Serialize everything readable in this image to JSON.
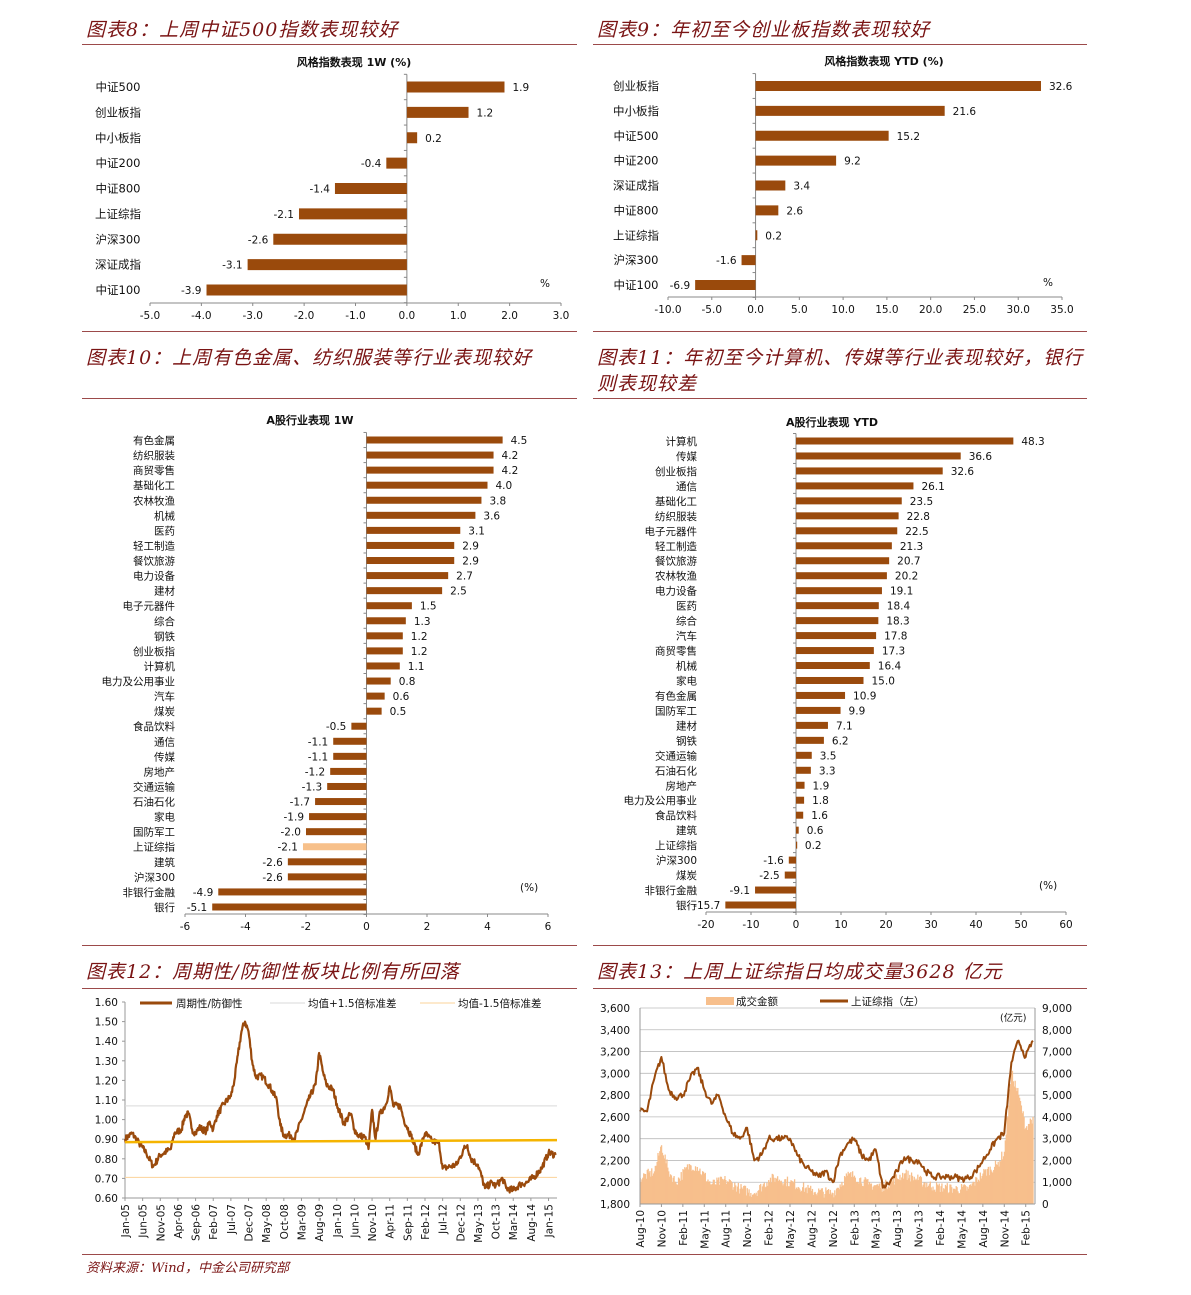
{
  "figures": [
    {
      "caption": "图表8：上周中证500指数表现较好"
    },
    {
      "caption": "图表9：年初至今创业板指数表现较好"
    },
    {
      "caption": "图表10：上周有色金属、纺织服装等行业表现较好"
    },
    {
      "caption_line1": "图表11：年初至今计算机、传媒等行业表现较好，银行",
      "caption_line2": "则表现较差"
    },
    {
      "caption": "图表12：周期性/防御性板块比例有所回落"
    },
    {
      "caption": "图表13：上周上证综指日均成交量3628 亿元"
    }
  ],
  "source": "资料来源：Wind，中金公司研究部",
  "colors": {
    "bar": "#9a4a0c",
    "highlight_bar": "#f7c08a",
    "caption": "#7a1414",
    "mean_line": "#f5b400",
    "plus_sigma": "#d9d9d9",
    "minus_sigma": "#fbd39a",
    "volume": "#f7bf8c"
  },
  "chart_data": [
    {
      "type": "bar",
      "orientation": "horizontal",
      "title": "风格指数表现 1W (%)",
      "unit_label": "%",
      "categories": [
        "中证500",
        "创业板指",
        "中小板指",
        "中证200",
        "中证800",
        "上证综指",
        "沪深300",
        "深证成指",
        "中证100"
      ],
      "values": [
        1.9,
        1.2,
        0.2,
        -0.4,
        -1.4,
        -2.1,
        -2.6,
        -3.1,
        -3.9
      ],
      "xlim": [
        -5,
        3
      ],
      "xticks": [
        "-5.0",
        "-4.0",
        "-3.0",
        "-2.0",
        "-1.0",
        "0.0",
        "1.0",
        "2.0",
        "3.0"
      ]
    },
    {
      "type": "bar",
      "orientation": "horizontal",
      "title": "风格指数表现 YTD (%)",
      "unit_label": "%",
      "categories": [
        "创业板指",
        "中小板指",
        "中证500",
        "中证200",
        "深证成指",
        "中证800",
        "上证综指",
        "沪深300",
        "中证100"
      ],
      "values": [
        32.6,
        21.6,
        15.2,
        9.2,
        3.4,
        2.6,
        0.2,
        -1.6,
        -6.9
      ],
      "xlim": [
        -10,
        35
      ],
      "xticks": [
        "-10.0",
        "-5.0",
        "0.0",
        "5.0",
        "10.0",
        "15.0",
        "20.0",
        "25.0",
        "30.0",
        "35.0"
      ]
    },
    {
      "type": "bar",
      "orientation": "horizontal",
      "title": "A股行业表现  1W",
      "unit_label": "(%)",
      "categories": [
        "有色金属",
        "纺织服装",
        "商贸零售",
        "基础化工",
        "农林牧渔",
        "机械",
        "医药",
        "轻工制造",
        "餐饮旅游",
        "电力设备",
        "建材",
        "电子元器件",
        "综合",
        "钢铁",
        "创业板指",
        "计算机",
        "电力及公用事业",
        "汽车",
        "煤炭",
        "食品饮料",
        "通信",
        "传媒",
        "房地产",
        "交通运输",
        "石油石化",
        "家电",
        "国防军工",
        "上证综指",
        "建筑",
        "沪深300",
        "非银行金融",
        "银行"
      ],
      "values": [
        4.5,
        4.2,
        4.2,
        4.0,
        3.8,
        3.6,
        3.1,
        2.9,
        2.9,
        2.7,
        2.5,
        1.5,
        1.3,
        1.2,
        1.2,
        1.1,
        0.8,
        0.6,
        0.5,
        -0.5,
        -1.1,
        -1.1,
        -1.2,
        -1.3,
        -1.7,
        -1.9,
        -2.0,
        -2.1,
        -2.6,
        -2.6,
        -4.9,
        -5.1
      ],
      "highlight": "上证综指",
      "xlim": [
        -6,
        6
      ],
      "xticks": [
        "-6",
        "-4",
        "-2",
        "0",
        "2",
        "4",
        "6"
      ]
    },
    {
      "type": "bar",
      "orientation": "horizontal",
      "title": "A股行业表现 YTD",
      "unit_label": "(%)",
      "categories": [
        "计算机",
        "传媒",
        "创业板指",
        "通信",
        "基础化工",
        "纺织服装",
        "电子元器件",
        "轻工制造",
        "餐饮旅游",
        "农林牧渔",
        "电力设备",
        "医药",
        "综合",
        "汽车",
        "商贸零售",
        "机械",
        "家电",
        "有色金属",
        "国防军工",
        "建材",
        "钢铁",
        "交通运输",
        "石油石化",
        "房地产",
        "电力及公用事业",
        "食品饮料",
        "建筑",
        "上证综指",
        "沪深300",
        "煤炭",
        "非银行金融",
        "银行"
      ],
      "values": [
        48.3,
        36.6,
        32.6,
        26.1,
        23.5,
        22.8,
        22.5,
        21.3,
        20.7,
        20.2,
        19.1,
        18.4,
        18.3,
        17.8,
        17.3,
        16.4,
        15.0,
        10.9,
        9.9,
        7.1,
        6.2,
        3.5,
        3.3,
        1.9,
        1.8,
        1.6,
        0.6,
        0.2,
        -1.6,
        -2.5,
        -9.1,
        -15.7
      ],
      "xlim": [
        -20,
        60
      ],
      "xticks": [
        "-20",
        "-10",
        "0",
        "10",
        "20",
        "30",
        "40",
        "50",
        "60"
      ]
    },
    {
      "type": "line",
      "legend": [
        "周期性/防御性",
        "均值+1.5倍标准差",
        "均值-1.5倍标准差"
      ],
      "legend_position": "top",
      "ylim": [
        0.6,
        1.6
      ],
      "yticks": [
        "0.60",
        "0.70",
        "0.80",
        "0.90",
        "1.00",
        "1.10",
        "1.20",
        "1.30",
        "1.40",
        "1.50",
        "1.60"
      ],
      "xticks": [
        "Jan-05",
        "Jun-05",
        "Nov-05",
        "Apr-06",
        "Sep-06",
        "Feb-07",
        "Jul-07",
        "Dec-07",
        "May-08",
        "Oct-08",
        "Mar-09",
        "Aug-09",
        "Jan-10",
        "Jun-10",
        "Nov-10",
        "Apr-11",
        "Sep-11",
        "Feb-12",
        "Jul-12",
        "Dec-12",
        "May-13",
        "Oct-13",
        "Mar-14",
        "Aug-14",
        "Jan-15"
      ],
      "xlim": [
        "2005-01",
        "2015-03"
      ],
      "reference_lines": {
        "plus_1_5_sd": 1.07,
        "minus_1_5_sd": 0.705,
        "mean_unlabeled": [
          0.885,
          0.895
        ]
      },
      "series": [
        {
          "name": "周期性/防御性",
          "points": [
            [
              "2005-01",
              0.9
            ],
            [
              "2005-03",
              0.93
            ],
            [
              "2005-05",
              0.88
            ],
            [
              "2005-07",
              0.83
            ],
            [
              "2005-09",
              0.76
            ],
            [
              "2005-11",
              0.82
            ],
            [
              "2006-01",
              0.84
            ],
            [
              "2006-02",
              0.85
            ],
            [
              "2006-03",
              0.93
            ],
            [
              "2006-05",
              0.95
            ],
            [
              "2006-06",
              1.02
            ],
            [
              "2006-07",
              1.03
            ],
            [
              "2006-08",
              0.95
            ],
            [
              "2006-09",
              0.93
            ],
            [
              "2006-10",
              0.96
            ],
            [
              "2006-12",
              0.94
            ],
            [
              "2007-01",
              0.99
            ],
            [
              "2007-02",
              0.95
            ],
            [
              "2007-03",
              1.02
            ],
            [
              "2007-05",
              1.08
            ],
            [
              "2007-07",
              1.12
            ],
            [
              "2007-08",
              1.2
            ],
            [
              "2007-09",
              1.33
            ],
            [
              "2007-10",
              1.45
            ],
            [
              "2007-11",
              1.5
            ],
            [
              "2007-12",
              1.45
            ],
            [
              "2008-01",
              1.3
            ],
            [
              "2008-02",
              1.22
            ],
            [
              "2008-04",
              1.22
            ],
            [
              "2008-06",
              1.17
            ],
            [
              "2008-08",
              1.1
            ],
            [
              "2008-09",
              0.97
            ],
            [
              "2008-10",
              0.92
            ],
            [
              "2008-12",
              0.92
            ],
            [
              "2009-01",
              0.9
            ],
            [
              "2009-02",
              0.95
            ],
            [
              "2009-03",
              1.0
            ],
            [
              "2009-05",
              1.1
            ],
            [
              "2009-07",
              1.18
            ],
            [
              "2009-08",
              1.34
            ],
            [
              "2009-09",
              1.25
            ],
            [
              "2009-10",
              1.18
            ],
            [
              "2009-12",
              1.15
            ],
            [
              "2010-01",
              1.08
            ],
            [
              "2010-03",
              0.98
            ],
            [
              "2010-05",
              1.03
            ],
            [
              "2010-06",
              0.95
            ],
            [
              "2010-07",
              0.92
            ],
            [
              "2010-09",
              0.91
            ],
            [
              "2010-10",
              0.85
            ],
            [
              "2010-11",
              1.05
            ],
            [
              "2010-12",
              0.9
            ],
            [
              "2011-01",
              1.02
            ],
            [
              "2011-03",
              1.08
            ],
            [
              "2011-04",
              1.17
            ],
            [
              "2011-05",
              1.07
            ],
            [
              "2011-07",
              1.07
            ],
            [
              "2011-08",
              1.0
            ],
            [
              "2011-10",
              0.92
            ],
            [
              "2011-12",
              0.82
            ],
            [
              "2012-02",
              0.93
            ],
            [
              "2012-04",
              0.89
            ],
            [
              "2012-06",
              0.88
            ],
            [
              "2012-07",
              0.75
            ],
            [
              "2012-09",
              0.76
            ],
            [
              "2012-11",
              0.77
            ],
            [
              "2013-01",
              0.85
            ],
            [
              "2013-02",
              0.87
            ],
            [
              "2013-03",
              0.8
            ],
            [
              "2013-05",
              0.77
            ],
            [
              "2013-07",
              0.65
            ],
            [
              "2013-09",
              0.68
            ],
            [
              "2013-10",
              0.66
            ],
            [
              "2013-12",
              0.7
            ],
            [
              "2014-01",
              0.65
            ],
            [
              "2014-03",
              0.64
            ],
            [
              "2014-05",
              0.67
            ],
            [
              "2014-07",
              0.68
            ],
            [
              "2014-09",
              0.71
            ],
            [
              "2014-11",
              0.75
            ],
            [
              "2015-01",
              0.83
            ],
            [
              "2015-03",
              0.82
            ]
          ]
        }
      ]
    },
    {
      "type": "line+area",
      "legend": [
        "成交金额",
        "上证综指（左）"
      ],
      "legend_position": "top",
      "right_unit": "(亿元)",
      "ylim_left": [
        1800,
        3600
      ],
      "yticks_left": [
        "1,800",
        "2,000",
        "2,200",
        "2,400",
        "2,600",
        "2,800",
        "3,000",
        "3,200",
        "3,400",
        "3,600"
      ],
      "ylim_right": [
        0,
        9000
      ],
      "yticks_right": [
        "0",
        "1,000",
        "2,000",
        "3,000",
        "4,000",
        "5,000",
        "6,000",
        "7,000",
        "8,000",
        "9,000"
      ],
      "xticks": [
        "Aug-10",
        "Nov-10",
        "Feb-11",
        "May-11",
        "Aug-11",
        "Nov-11",
        "Feb-12",
        "May-12",
        "Aug-12",
        "Nov-12",
        "Feb-13",
        "May-13",
        "Aug-13",
        "Nov-13",
        "Feb-14",
        "May-14",
        "Aug-14",
        "Nov-14",
        "Feb-15"
      ],
      "xlim": [
        "2010-08",
        "2015-03"
      ],
      "series": [
        {
          "name": "上证综指（左）",
          "axis": "left",
          "points": [
            [
              "2010-08",
              2650
            ],
            [
              "2010-09",
              2650
            ],
            [
              "2010-10",
              2950
            ],
            [
              "2010-11",
              3150
            ],
            [
              "2010-12",
              2850
            ],
            [
              "2011-01",
              2780
            ],
            [
              "2011-02",
              2800
            ],
            [
              "2011-03",
              2950
            ],
            [
              "2011-04",
              3050
            ],
            [
              "2011-05",
              2850
            ],
            [
              "2011-06",
              2720
            ],
            [
              "2011-07",
              2800
            ],
            [
              "2011-08",
              2600
            ],
            [
              "2011-09",
              2450
            ],
            [
              "2011-10",
              2400
            ],
            [
              "2011-11",
              2500
            ],
            [
              "2011-12",
              2200
            ],
            [
              "2012-01",
              2250
            ],
            [
              "2012-02",
              2400
            ],
            [
              "2012-03",
              2400
            ],
            [
              "2012-04",
              2400
            ],
            [
              "2012-05",
              2400
            ],
            [
              "2012-06",
              2250
            ],
            [
              "2012-07",
              2150
            ],
            [
              "2012-08",
              2100
            ],
            [
              "2012-09",
              2050
            ],
            [
              "2012-10",
              2100
            ],
            [
              "2012-11",
              2000
            ],
            [
              "2012-12",
              2250
            ],
            [
              "2013-01",
              2350
            ],
            [
              "2013-02",
              2400
            ],
            [
              "2013-03",
              2250
            ],
            [
              "2013-04",
              2200
            ],
            [
              "2013-05",
              2300
            ],
            [
              "2013-06",
              1950
            ],
            [
              "2013-07",
              2000
            ],
            [
              "2013-08",
              2100
            ],
            [
              "2013-09",
              2230
            ],
            [
              "2013-10",
              2200
            ],
            [
              "2013-11",
              2200
            ],
            [
              "2013-12",
              2100
            ],
            [
              "2014-01",
              2050
            ],
            [
              "2014-02",
              2050
            ],
            [
              "2014-03",
              2050
            ],
            [
              "2014-04",
              2050
            ],
            [
              "2014-05",
              2030
            ],
            [
              "2014-06",
              2040
            ],
            [
              "2014-07",
              2100
            ],
            [
              "2014-08",
              2200
            ],
            [
              "2014-09",
              2300
            ],
            [
              "2014-10",
              2400
            ],
            [
              "2014-11",
              2450
            ],
            [
              "2014-12",
              3100
            ],
            [
              "2015-01",
              3300
            ],
            [
              "2015-02",
              3150
            ],
            [
              "2015-03",
              3300
            ]
          ]
        },
        {
          "name": "成交金额",
          "axis": "right",
          "points": [
            [
              "2010-08",
              1200
            ],
            [
              "2010-10",
              1500
            ],
            [
              "2010-11",
              2700
            ],
            [
              "2010-12",
              1500
            ],
            [
              "2011-01",
              1000
            ],
            [
              "2011-03",
              1800
            ],
            [
              "2011-04",
              1700
            ],
            [
              "2011-06",
              900
            ],
            [
              "2011-08",
              1100
            ],
            [
              "2011-10",
              700
            ],
            [
              "2011-12",
              500
            ],
            [
              "2012-02",
              1100
            ],
            [
              "2012-03",
              1200
            ],
            [
              "2012-05",
              1000
            ],
            [
              "2012-08",
              600
            ],
            [
              "2012-11",
              500
            ],
            [
              "2013-01",
              1300
            ],
            [
              "2013-02",
              1300
            ],
            [
              "2013-04",
              900
            ],
            [
              "2013-06",
              800
            ],
            [
              "2013-09",
              1400
            ],
            [
              "2013-11",
              1100
            ],
            [
              "2014-01",
              800
            ],
            [
              "2014-04",
              700
            ],
            [
              "2014-06",
              700
            ],
            [
              "2014-08",
              1400
            ],
            [
              "2014-10",
              1800
            ],
            [
              "2014-11",
              2400
            ],
            [
              "2014-12",
              6000
            ],
            [
              "2015-01",
              5000
            ],
            [
              "2015-02",
              3500
            ],
            [
              "2015-03",
              4000
            ]
          ]
        }
      ]
    }
  ]
}
